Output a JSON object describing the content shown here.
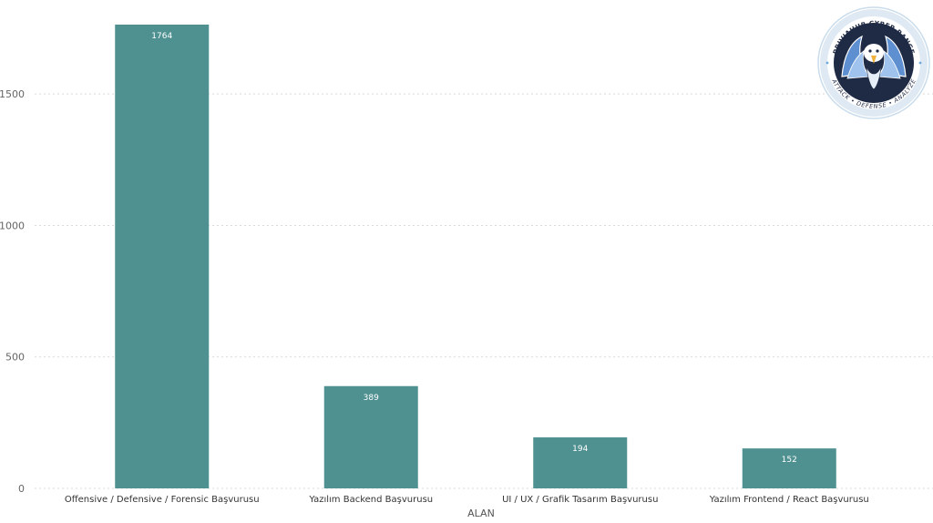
{
  "chart_data": {
    "type": "bar",
    "categories": [
      "Offensive / Defensive / Forensic Başvurusu",
      "Yazılım Backend Başvurusu",
      "UI / UX / Grafik Tasarım Başvurusu",
      "Yazılım Frontend / React Başvurusu"
    ],
    "values": [
      1764,
      389,
      194,
      152
    ],
    "data_labels": [
      "1764",
      "389",
      "194",
      "152"
    ],
    "xlabel": "ALAN",
    "ylabel": "",
    "ylim": [
      0,
      1764
    ],
    "yticks": [
      0,
      500,
      1000,
      1500
    ],
    "ytick_labels": [
      "0",
      "500",
      "1000",
      "1500"
    ],
    "grid": true,
    "bar_color": "#4f9090",
    "legend": "none"
  },
  "logo": {
    "top_text": "PRIVIAHUB CYBER RANGE",
    "bottom_text": "ATTACK • DEFENSE • ANALYZE",
    "ring_color": "#1f2a44",
    "accent_color": "#6fa8dc"
  }
}
